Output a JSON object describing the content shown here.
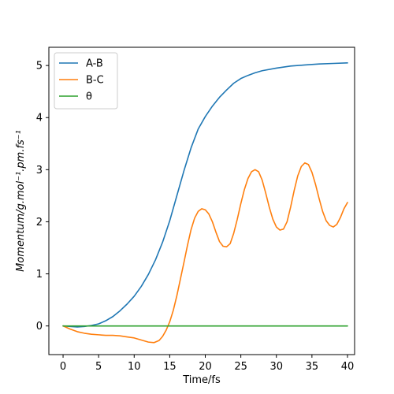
{
  "chart_data": {
    "type": "line",
    "xlabel": "Time/fs",
    "ylabel": "Momentum/g.mol⁻¹.pm.fs⁻¹",
    "xlim": [
      -2,
      41
    ],
    "ylim": [
      -0.55,
      5.35
    ],
    "xticks": [
      0,
      5,
      10,
      15,
      20,
      25,
      30,
      35,
      40
    ],
    "yticks": [
      0,
      1,
      2,
      3,
      4,
      5
    ],
    "grid": false,
    "legend_position": "top-left",
    "series": [
      {
        "name": "A-B",
        "color": "#1f77b4",
        "x": [
          0,
          2,
          3,
          4,
          5,
          6,
          7,
          8,
          9,
          10,
          11,
          12,
          13,
          14,
          15,
          16,
          17,
          18,
          19,
          20,
          21,
          22,
          23,
          24,
          25,
          26,
          27,
          28,
          30,
          32,
          34,
          36,
          38,
          40
        ],
        "y": [
          0.0,
          -0.02,
          -0.01,
          0.01,
          0.04,
          0.1,
          0.18,
          0.29,
          0.42,
          0.57,
          0.76,
          0.99,
          1.27,
          1.61,
          2.02,
          2.5,
          2.98,
          3.42,
          3.78,
          4.02,
          4.22,
          4.39,
          4.53,
          4.66,
          4.75,
          4.81,
          4.86,
          4.9,
          4.95,
          4.99,
          5.01,
          5.03,
          5.04,
          5.05
        ]
      },
      {
        "name": "B-C",
        "color": "#ff7f0e",
        "x": [
          0,
          1,
          2,
          3,
          4,
          5,
          6,
          7,
          8,
          9,
          10,
          11,
          12,
          12.8,
          13.5,
          14,
          14.5,
          15,
          15.5,
          16,
          16.5,
          17,
          17.5,
          18,
          18.5,
          19,
          19.5,
          20,
          20.5,
          21,
          21.5,
          22,
          22.5,
          23,
          23.5,
          24,
          24.5,
          25,
          25.5,
          26,
          26.5,
          27,
          27.5,
          28,
          28.5,
          29,
          29.5,
          30,
          30.5,
          31,
          31.5,
          32,
          32.5,
          33,
          33.5,
          34,
          34.5,
          35,
          35.5,
          36,
          36.5,
          37,
          37.5,
          38,
          38.5,
          39,
          39.5,
          40
        ],
        "y": [
          0.0,
          -0.06,
          -0.11,
          -0.14,
          -0.16,
          -0.17,
          -0.18,
          -0.18,
          -0.19,
          -0.21,
          -0.23,
          -0.27,
          -0.31,
          -0.32,
          -0.28,
          -0.2,
          -0.08,
          0.08,
          0.3,
          0.58,
          0.9,
          1.22,
          1.55,
          1.85,
          2.07,
          2.2,
          2.25,
          2.23,
          2.15,
          2.0,
          1.8,
          1.62,
          1.53,
          1.52,
          1.58,
          1.78,
          2.05,
          2.35,
          2.62,
          2.83,
          2.96,
          3.0,
          2.96,
          2.8,
          2.55,
          2.28,
          2.05,
          1.9,
          1.84,
          1.86,
          2.0,
          2.28,
          2.6,
          2.88,
          3.06,
          3.13,
          3.1,
          2.95,
          2.72,
          2.45,
          2.2,
          2.02,
          1.93,
          1.9,
          1.95,
          2.08,
          2.25,
          2.37
        ]
      },
      {
        "name": "θ",
        "color": "#2ca02c",
        "x": [
          0,
          40
        ],
        "y": [
          0.0,
          0.0
        ]
      }
    ]
  }
}
